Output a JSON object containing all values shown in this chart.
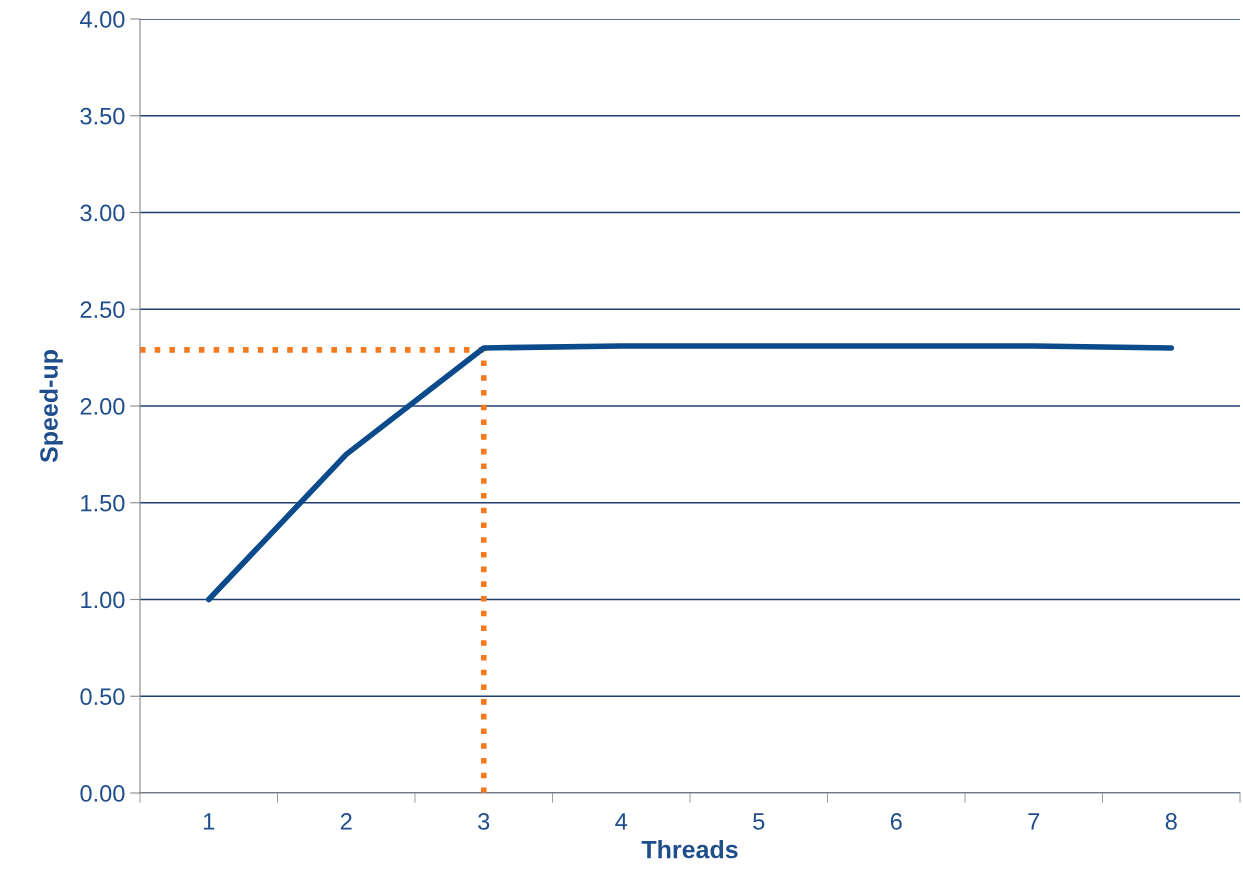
{
  "chart_data": {
    "type": "line",
    "xlabel": "Threads",
    "ylabel": "Speed-up",
    "categories": [
      "1",
      "2",
      "3",
      "4",
      "5",
      "6",
      "7",
      "8"
    ],
    "series": [
      {
        "color": "#0b4a8b",
        "values": [
          1.0,
          1.75,
          2.3,
          2.31,
          2.31,
          2.31,
          2.31,
          2.3
        ]
      }
    ],
    "ylim": [
      0,
      4
    ],
    "yticks": [
      {
        "value": 0,
        "label": "0.00"
      },
      {
        "value": 0.5,
        "label": "0.50"
      },
      {
        "value": 1,
        "label": "1.00"
      },
      {
        "value": 1.5,
        "label": "1.50"
      },
      {
        "value": 2,
        "label": "2.00"
      },
      {
        "value": 2.5,
        "label": "2.50"
      },
      {
        "value": 3,
        "label": "3.00"
      },
      {
        "value": 3.5,
        "label": "3.50"
      },
      {
        "value": 4,
        "label": "4.00"
      }
    ],
    "ref_lines": [
      {
        "axis": "x",
        "value": "3",
        "color": "#f7791e",
        "line_style": "dotted"
      },
      {
        "axis": "y",
        "value": 2.29,
        "color": "#f7791e",
        "line_style": "dotted"
      }
    ],
    "grid": "y",
    "marker": "none",
    "line_style": "solid"
  }
}
